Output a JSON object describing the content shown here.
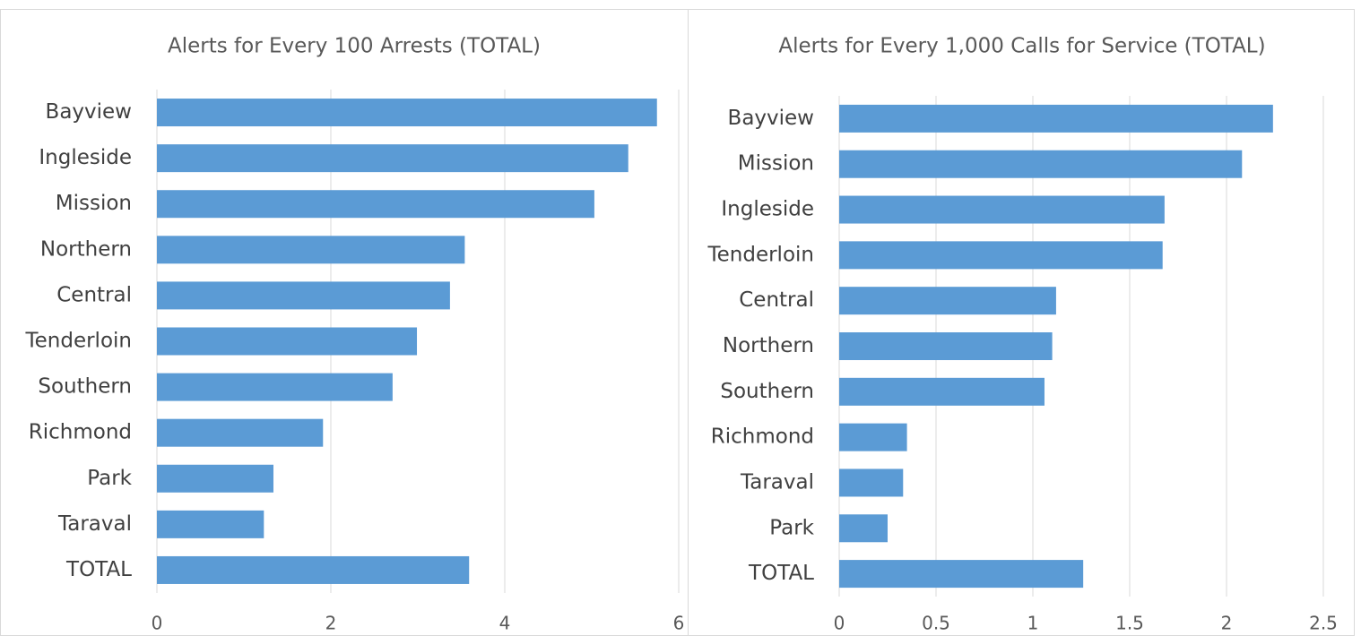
{
  "chart_data": [
    {
      "type": "bar",
      "orientation": "horizontal",
      "title": "Alerts for Every 100 Arrests (TOTAL)",
      "categories": [
        "Bayview",
        "Ingleside",
        "Mission",
        "Northern",
        "Central",
        "Tenderloin",
        "Southern",
        "Richmond",
        "Park",
        "Taraval",
        "TOTAL"
      ],
      "values": [
        5.75,
        5.42,
        5.03,
        3.54,
        3.37,
        2.99,
        2.71,
        1.91,
        1.34,
        1.23,
        3.59
      ],
      "color": "#5b9bd5",
      "xlim": [
        0,
        6
      ],
      "xticks": [
        0,
        2,
        4,
        6
      ],
      "grid": true
    },
    {
      "type": "bar",
      "orientation": "horizontal",
      "title": "Alerts for Every 1,000 Calls for Service (TOTAL)",
      "categories": [
        "Bayview",
        "Mission",
        "Ingleside",
        "Tenderloin",
        "Central",
        "Northern",
        "Southern",
        "Richmond",
        "Taraval",
        "Park",
        "TOTAL"
      ],
      "values": [
        2.24,
        2.08,
        1.68,
        1.67,
        1.12,
        1.1,
        1.06,
        0.35,
        0.33,
        0.25,
        1.26
      ],
      "color": "#5b9bd5",
      "xlim": [
        0,
        2.5
      ],
      "xticks": [
        0,
        0.5,
        1,
        1.5,
        2,
        2.5
      ],
      "grid": true
    }
  ]
}
